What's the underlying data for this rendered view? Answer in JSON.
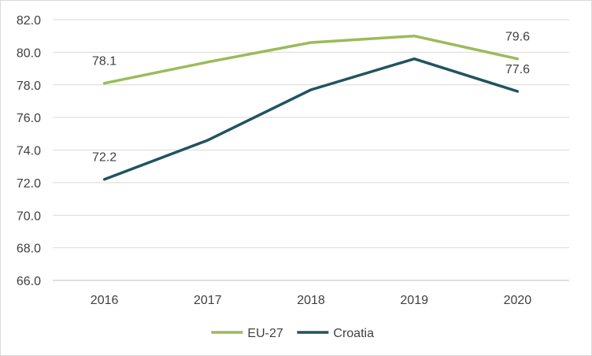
{
  "chart_data": {
    "type": "line",
    "title": "",
    "xlabel": "",
    "ylabel": "",
    "categories": [
      "2016",
      "2017",
      "2018",
      "2019",
      "2020"
    ],
    "ylim": [
      66.0,
      82.0
    ],
    "ytick_step": 2.0,
    "yticks": [
      "66.0",
      "68.0",
      "70.0",
      "72.0",
      "74.0",
      "76.0",
      "78.0",
      "80.0",
      "82.0"
    ],
    "grid": true,
    "legend_position": "bottom",
    "series": [
      {
        "name": "EU-27",
        "color": "#9bbb59",
        "values": [
          78.1,
          79.4,
          80.6,
          81.0,
          79.6
        ],
        "labels": [
          {
            "index": 0,
            "text": "78.1"
          },
          {
            "index": 4,
            "text": "79.6"
          }
        ]
      },
      {
        "name": "Croatia",
        "color": "#215361",
        "values": [
          72.2,
          74.6,
          77.7,
          79.6,
          77.6
        ],
        "labels": [
          {
            "index": 0,
            "text": "72.2"
          },
          {
            "index": 4,
            "text": "77.6"
          }
        ]
      }
    ]
  }
}
